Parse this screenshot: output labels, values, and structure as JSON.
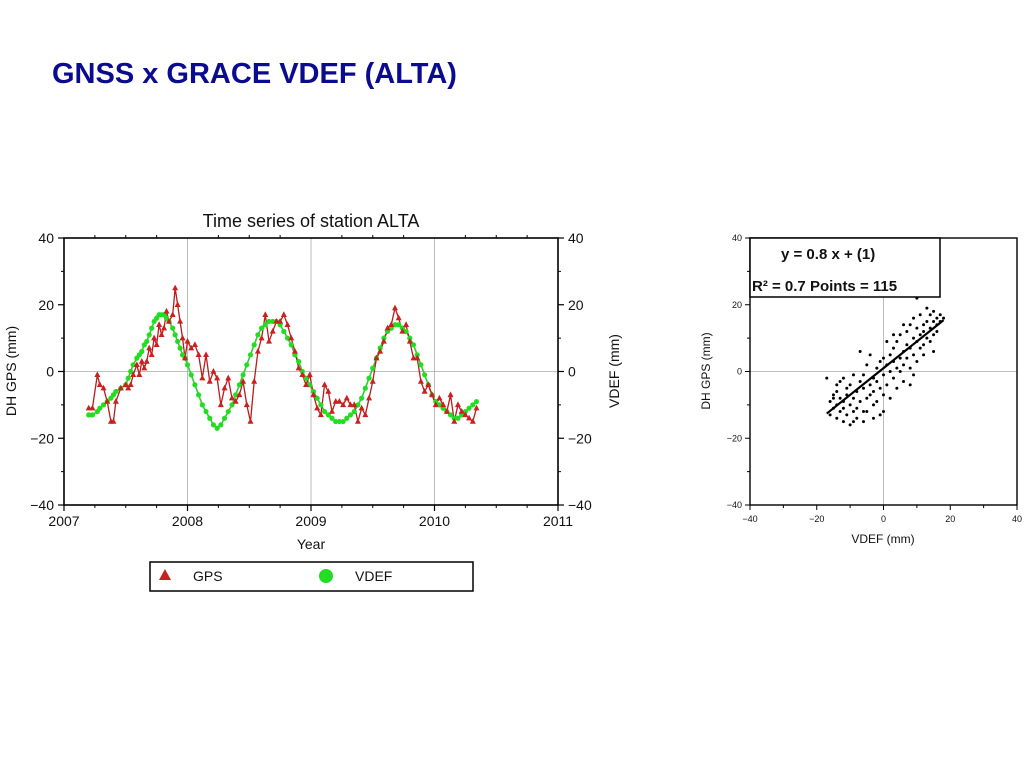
{
  "slide": {
    "title": "GNSS x GRACE VDEF (ALTA)"
  },
  "colors": {
    "title": "#0b0b8f",
    "gps": "#b81c1c",
    "gps_marker": "#cc2020",
    "vdef_line": "#33cc33",
    "vdef_marker": "#22dd22",
    "grid": "#aaaaaa"
  },
  "chart_data": [
    {
      "type": "line",
      "title": "Time series of station ALTA",
      "xlabel": "Year",
      "ylabel": "DH GPS (mm)",
      "ylabel_right": "VDEF  (mm)",
      "xlim": [
        2007,
        2011
      ],
      "ylim": [
        -40,
        40
      ],
      "xticks": [
        2007,
        2008,
        2009,
        2010,
        2011
      ],
      "xtick_labels": [
        "2007",
        "2008",
        "2009",
        "2010",
        "2011"
      ],
      "yticks": [
        -40,
        -20,
        0,
        20,
        40
      ],
      "ytick_labels": [
        "−40",
        "−20",
        "0",
        "20",
        "40"
      ],
      "grid": "vertical lines at each year, horizontal line at 0",
      "legend": {
        "placement": "below",
        "entries": [
          {
            "label": "GPS",
            "marker": "triangle"
          },
          {
            "label": "VDEF",
            "marker": "circle"
          }
        ]
      },
      "series": [
        {
          "name": "GPS",
          "x": [
            2007.2,
            2007.23,
            2007.27,
            2007.29,
            2007.32,
            2007.35,
            2007.38,
            2007.4,
            2007.42,
            2007.46,
            2007.5,
            2007.52,
            2007.54,
            2007.56,
            2007.59,
            2007.61,
            2007.63,
            2007.65,
            2007.67,
            2007.69,
            2007.71,
            2007.73,
            2007.75,
            2007.77,
            2007.79,
            2007.81,
            2007.83,
            2007.85,
            2007.88,
            2007.9,
            2007.92,
            2007.94,
            2007.96,
            2007.98,
            2008.0,
            2008.03,
            2008.06,
            2008.09,
            2008.12,
            2008.15,
            2008.18,
            2008.21,
            2008.24,
            2008.27,
            2008.3,
            2008.33,
            2008.36,
            2008.39,
            2008.42,
            2008.45,
            2008.48,
            2008.51,
            2008.54,
            2008.57,
            2008.6,
            2008.63,
            2008.66,
            2008.69,
            2008.72,
            2008.75,
            2008.78,
            2008.81,
            2008.84,
            2008.87,
            2008.9,
            2008.93,
            2008.96,
            2008.99,
            2009.02,
            2009.05,
            2009.08,
            2009.11,
            2009.14,
            2009.17,
            2009.2,
            2009.23,
            2009.26,
            2009.29,
            2009.32,
            2009.35,
            2009.38,
            2009.41,
            2009.44,
            2009.47,
            2009.5,
            2009.53,
            2009.56,
            2009.59,
            2009.62,
            2009.65,
            2009.68,
            2009.71,
            2009.74,
            2009.77,
            2009.8,
            2009.83,
            2009.86,
            2009.89,
            2009.92,
            2009.95,
            2009.98,
            2010.01,
            2010.04,
            2010.07,
            2010.1,
            2010.13,
            2010.16,
            2010.19,
            2010.22,
            2010.25,
            2010.28,
            2010.31,
            2010.34
          ],
          "values": [
            -11,
            -11,
            -1,
            -4,
            -5,
            -9,
            -15,
            -15,
            -9,
            -5,
            -4,
            -5,
            -4,
            -1,
            2,
            -1,
            3,
            1,
            3,
            7,
            5,
            10,
            8,
            14,
            11,
            13,
            18,
            15,
            17,
            25,
            20,
            15,
            10,
            4,
            9,
            7,
            8,
            5,
            -2,
            5,
            -3,
            0,
            -2,
            -10,
            -5,
            -2,
            -8,
            -9,
            -7,
            -3,
            -10,
            -15,
            -3,
            6,
            10,
            17,
            9,
            12,
            15,
            15,
            17,
            14,
            10,
            6,
            1,
            -1,
            -4,
            -1,
            -7,
            -11,
            -13,
            -4,
            -6,
            -12,
            -9,
            -9,
            -10,
            -8,
            -10,
            -10,
            -15,
            -11,
            -13,
            -8,
            -3,
            4,
            6,
            9,
            13,
            14,
            19,
            16,
            12,
            14,
            9,
            4,
            4,
            -3,
            -6,
            -4,
            -7,
            -10,
            -8,
            -10,
            -12,
            -7,
            -15,
            -10,
            -12,
            -13,
            -14,
            -15,
            -11
          ],
          "marker": "triangle"
        },
        {
          "name": "VDEF",
          "x": [
            2007.2,
            2007.23,
            2007.27,
            2007.29,
            2007.32,
            2007.35,
            2007.38,
            2007.4,
            2007.42,
            2007.46,
            2007.5,
            2007.52,
            2007.54,
            2007.56,
            2007.59,
            2007.61,
            2007.63,
            2007.65,
            2007.67,
            2007.69,
            2007.71,
            2007.73,
            2007.75,
            2007.77,
            2007.79,
            2007.81,
            2007.83,
            2007.85,
            2007.88,
            2007.9,
            2007.92,
            2007.94,
            2007.96,
            2007.98,
            2008.0,
            2008.03,
            2008.06,
            2008.09,
            2008.12,
            2008.15,
            2008.18,
            2008.21,
            2008.24,
            2008.27,
            2008.3,
            2008.33,
            2008.36,
            2008.39,
            2008.42,
            2008.45,
            2008.48,
            2008.51,
            2008.54,
            2008.57,
            2008.6,
            2008.63,
            2008.66,
            2008.69,
            2008.72,
            2008.75,
            2008.78,
            2008.81,
            2008.84,
            2008.87,
            2008.9,
            2008.93,
            2008.96,
            2008.99,
            2009.02,
            2009.05,
            2009.08,
            2009.11,
            2009.14,
            2009.17,
            2009.2,
            2009.23,
            2009.26,
            2009.29,
            2009.32,
            2009.35,
            2009.38,
            2009.41,
            2009.44,
            2009.47,
            2009.5,
            2009.53,
            2009.56,
            2009.59,
            2009.62,
            2009.65,
            2009.68,
            2009.71,
            2009.74,
            2009.77,
            2009.8,
            2009.83,
            2009.86,
            2009.89,
            2009.92,
            2009.95,
            2009.98,
            2010.01,
            2010.04,
            2010.07,
            2010.1,
            2010.13,
            2010.16,
            2010.19,
            2010.22,
            2010.25,
            2010.28,
            2010.31,
            2010.34
          ],
          "values": [
            -13,
            -13,
            -12,
            -11,
            -10,
            -9,
            -8,
            -7,
            -6,
            -5,
            -4,
            -2,
            0,
            2,
            4,
            5,
            6,
            8,
            9,
            11,
            13,
            15,
            16,
            17,
            17,
            17,
            16,
            15,
            13,
            11,
            9,
            7,
            5,
            4,
            2,
            -1,
            -4,
            -7,
            -10,
            -12,
            -14,
            -16,
            -17,
            -16,
            -14,
            -12,
            -10,
            -7,
            -4,
            -1,
            2,
            5,
            8,
            11,
            13,
            14,
            15,
            15,
            15,
            14,
            12,
            10,
            8,
            5,
            3,
            0,
            -2,
            -4,
            -6,
            -8,
            -10,
            -12,
            -13,
            -14,
            -15,
            -15,
            -15,
            -14,
            -13,
            -12,
            -10,
            -8,
            -5,
            -2,
            1,
            4,
            7,
            10,
            12,
            13,
            14,
            14,
            13,
            12,
            10,
            8,
            5,
            2,
            -1,
            -4,
            -7,
            -9,
            -10,
            -11,
            -12,
            -13,
            -14,
            -14,
            -13,
            -12,
            -11,
            -10,
            -9
          ],
          "marker": "circle"
        }
      ]
    },
    {
      "type": "scatter",
      "xlabel": "VDEF  (mm)",
      "ylabel": "DH GPS (mm)",
      "xlim": [
        -40,
        40
      ],
      "ylim": [
        -40,
        40
      ],
      "xticks": [
        -40,
        -20,
        0,
        20,
        40
      ],
      "xtick_labels": [
        "−40",
        "−20",
        "0",
        "20",
        "40"
      ],
      "yticks": [
        -40,
        -20,
        0,
        20,
        40
      ],
      "ytick_labels": [
        "−40",
        "−20",
        "0",
        "20",
        "40"
      ],
      "grid": "lines at x=0 and y=0",
      "annotation": {
        "equation": "y = 0.8 x + (1)",
        "stats": "R² = 0.7  Points = 115"
      },
      "fit_line": {
        "slope": 0.8,
        "intercept": 1,
        "x_range": [
          -17,
          18
        ]
      },
      "points": [
        [
          -17,
          -2
        ],
        [
          -16,
          -9
        ],
        [
          -16,
          -13
        ],
        [
          -15,
          -7
        ],
        [
          -15,
          -11
        ],
        [
          -15,
          -8
        ],
        [
          -14,
          -10
        ],
        [
          -14,
          -14
        ],
        [
          -14,
          -6
        ],
        [
          -13,
          -12
        ],
        [
          -13,
          -8
        ],
        [
          -13,
          -3
        ],
        [
          -12,
          -9
        ],
        [
          -12,
          -15
        ],
        [
          -12,
          -11
        ],
        [
          -11,
          -5
        ],
        [
          -11,
          -13
        ],
        [
          -11,
          -7
        ],
        [
          -10,
          -16
        ],
        [
          -10,
          -10
        ],
        [
          -10,
          -4
        ],
        [
          -9,
          -12
        ],
        [
          -9,
          -1
        ],
        [
          -9,
          -8
        ],
        [
          -8,
          -14
        ],
        [
          -8,
          -6
        ],
        [
          -8,
          -11
        ],
        [
          -7,
          -3
        ],
        [
          -7,
          -9
        ],
        [
          -7,
          6
        ],
        [
          -6,
          -15
        ],
        [
          -6,
          -5
        ],
        [
          -6,
          -1
        ],
        [
          -5,
          -8
        ],
        [
          -5,
          -12
        ],
        [
          -5,
          2
        ],
        [
          -4,
          -4
        ],
        [
          -4,
          -7
        ],
        [
          -4,
          5
        ],
        [
          -3,
          -6
        ],
        [
          -3,
          -2
        ],
        [
          -3,
          -10
        ],
        [
          -2,
          1
        ],
        [
          -2,
          -9
        ],
        [
          -2,
          -3
        ],
        [
          -1,
          -5
        ],
        [
          -1,
          3
        ],
        [
          -1,
          -13
        ],
        [
          0,
          -1
        ],
        [
          0,
          4
        ],
        [
          0,
          -7
        ],
        [
          1,
          2
        ],
        [
          1,
          -4
        ],
        [
          1,
          9
        ],
        [
          2,
          0
        ],
        [
          2,
          5
        ],
        [
          2,
          -8
        ],
        [
          3,
          3
        ],
        [
          3,
          7
        ],
        [
          3,
          -2
        ],
        [
          4,
          1
        ],
        [
          4,
          9
        ],
        [
          4,
          -5
        ],
        [
          5,
          4
        ],
        [
          5,
          11
        ],
        [
          5,
          0
        ],
        [
          6,
          6
        ],
        [
          6,
          2
        ],
        [
          6,
          -3
        ],
        [
          7,
          8
        ],
        [
          7,
          12
        ],
        [
          7,
          4
        ],
        [
          8,
          7
        ],
        [
          8,
          1
        ],
        [
          8,
          14
        ],
        [
          9,
          10
        ],
        [
          9,
          5
        ],
        [
          9,
          16
        ],
        [
          10,
          9
        ],
        [
          10,
          13
        ],
        [
          10,
          3
        ],
        [
          11,
          11
        ],
        [
          11,
          7
        ],
        [
          11,
          17
        ],
        [
          12,
          12
        ],
        [
          12,
          8
        ],
        [
          12,
          14
        ],
        [
          13,
          10
        ],
        [
          13,
          15
        ],
        [
          13,
          19
        ],
        [
          14,
          13
        ],
        [
          14,
          9
        ],
        [
          14,
          17
        ],
        [
          15,
          15
        ],
        [
          15,
          11
        ],
        [
          15,
          18
        ],
        [
          16,
          14
        ],
        [
          16,
          16
        ],
        [
          16,
          12
        ],
        [
          17,
          17
        ],
        [
          17,
          15
        ],
        [
          18,
          16
        ],
        [
          -12,
          -2
        ],
        [
          -9,
          -15
        ],
        [
          -6,
          -12
        ],
        [
          -3,
          -14
        ],
        [
          0,
          -12
        ],
        [
          3,
          11
        ],
        [
          6,
          14
        ],
        [
          9,
          -1
        ],
        [
          12,
          5
        ],
        [
          15,
          6
        ],
        [
          10,
          22
        ],
        [
          -14,
          -4
        ],
        [
          8,
          -4
        ]
      ],
      "marker": "dot"
    }
  ]
}
